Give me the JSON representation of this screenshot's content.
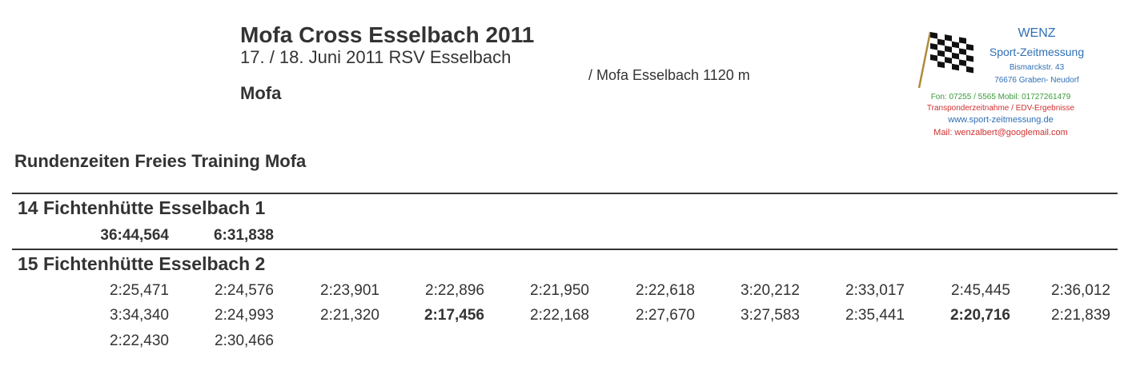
{
  "header": {
    "title": "Mofa Cross Esselbach 2011",
    "subtitle": "17. / 18. Juni 2011 RSV Esselbach",
    "track": "/ Mofa Esselbach 1120 m",
    "class": "Mofa"
  },
  "logo": {
    "name": "WENZ",
    "service": "Sport-Zeitmessung",
    "street": "Bismarckstr. 43",
    "city": "76676 Graben- Neudorf",
    "phone": "Fon: 07255 / 5565 Mobil: 01727261479",
    "tagline": "Transponderzeitnahme / EDV-Ergebnisse",
    "website": "www.sport-zeitmessung.de",
    "mail": "Mail: wenzalbert@googlemail.com",
    "colors": {
      "blue": "#2f6fb5",
      "green": "#3a9a3a",
      "red": "#d03030"
    }
  },
  "section_title": "Rundenzeiten Freies Training Mofa",
  "teams": [
    {
      "name": "14 Fichtenhütte Esselbach 1",
      "rows": [
        [
          {
            "t": "36:44,564",
            "bold": true
          },
          {
            "t": "6:31,838",
            "bold": true
          }
        ]
      ]
    },
    {
      "name": "15 Fichtenhütte Esselbach 2",
      "rows": [
        [
          {
            "t": "2:25,471"
          },
          {
            "t": "2:24,576"
          },
          {
            "t": "2:23,901"
          },
          {
            "t": "2:22,896"
          },
          {
            "t": "2:21,950"
          },
          {
            "t": "2:22,618"
          },
          {
            "t": "3:20,212"
          },
          {
            "t": "2:33,017"
          },
          {
            "t": "2:45,445"
          },
          {
            "t": "2:36,012"
          }
        ],
        [
          {
            "t": "3:34,340"
          },
          {
            "t": "2:24,993"
          },
          {
            "t": "2:21,320"
          },
          {
            "t": "2:17,456",
            "bold": true
          },
          {
            "t": "2:22,168"
          },
          {
            "t": "2:27,670"
          },
          {
            "t": "3:27,583"
          },
          {
            "t": "2:35,441"
          },
          {
            "t": "2:20,716",
            "bold": true
          },
          {
            "t": "2:21,839"
          }
        ],
        [
          {
            "t": "2:22,430"
          },
          {
            "t": "2:30,466"
          }
        ]
      ]
    }
  ]
}
